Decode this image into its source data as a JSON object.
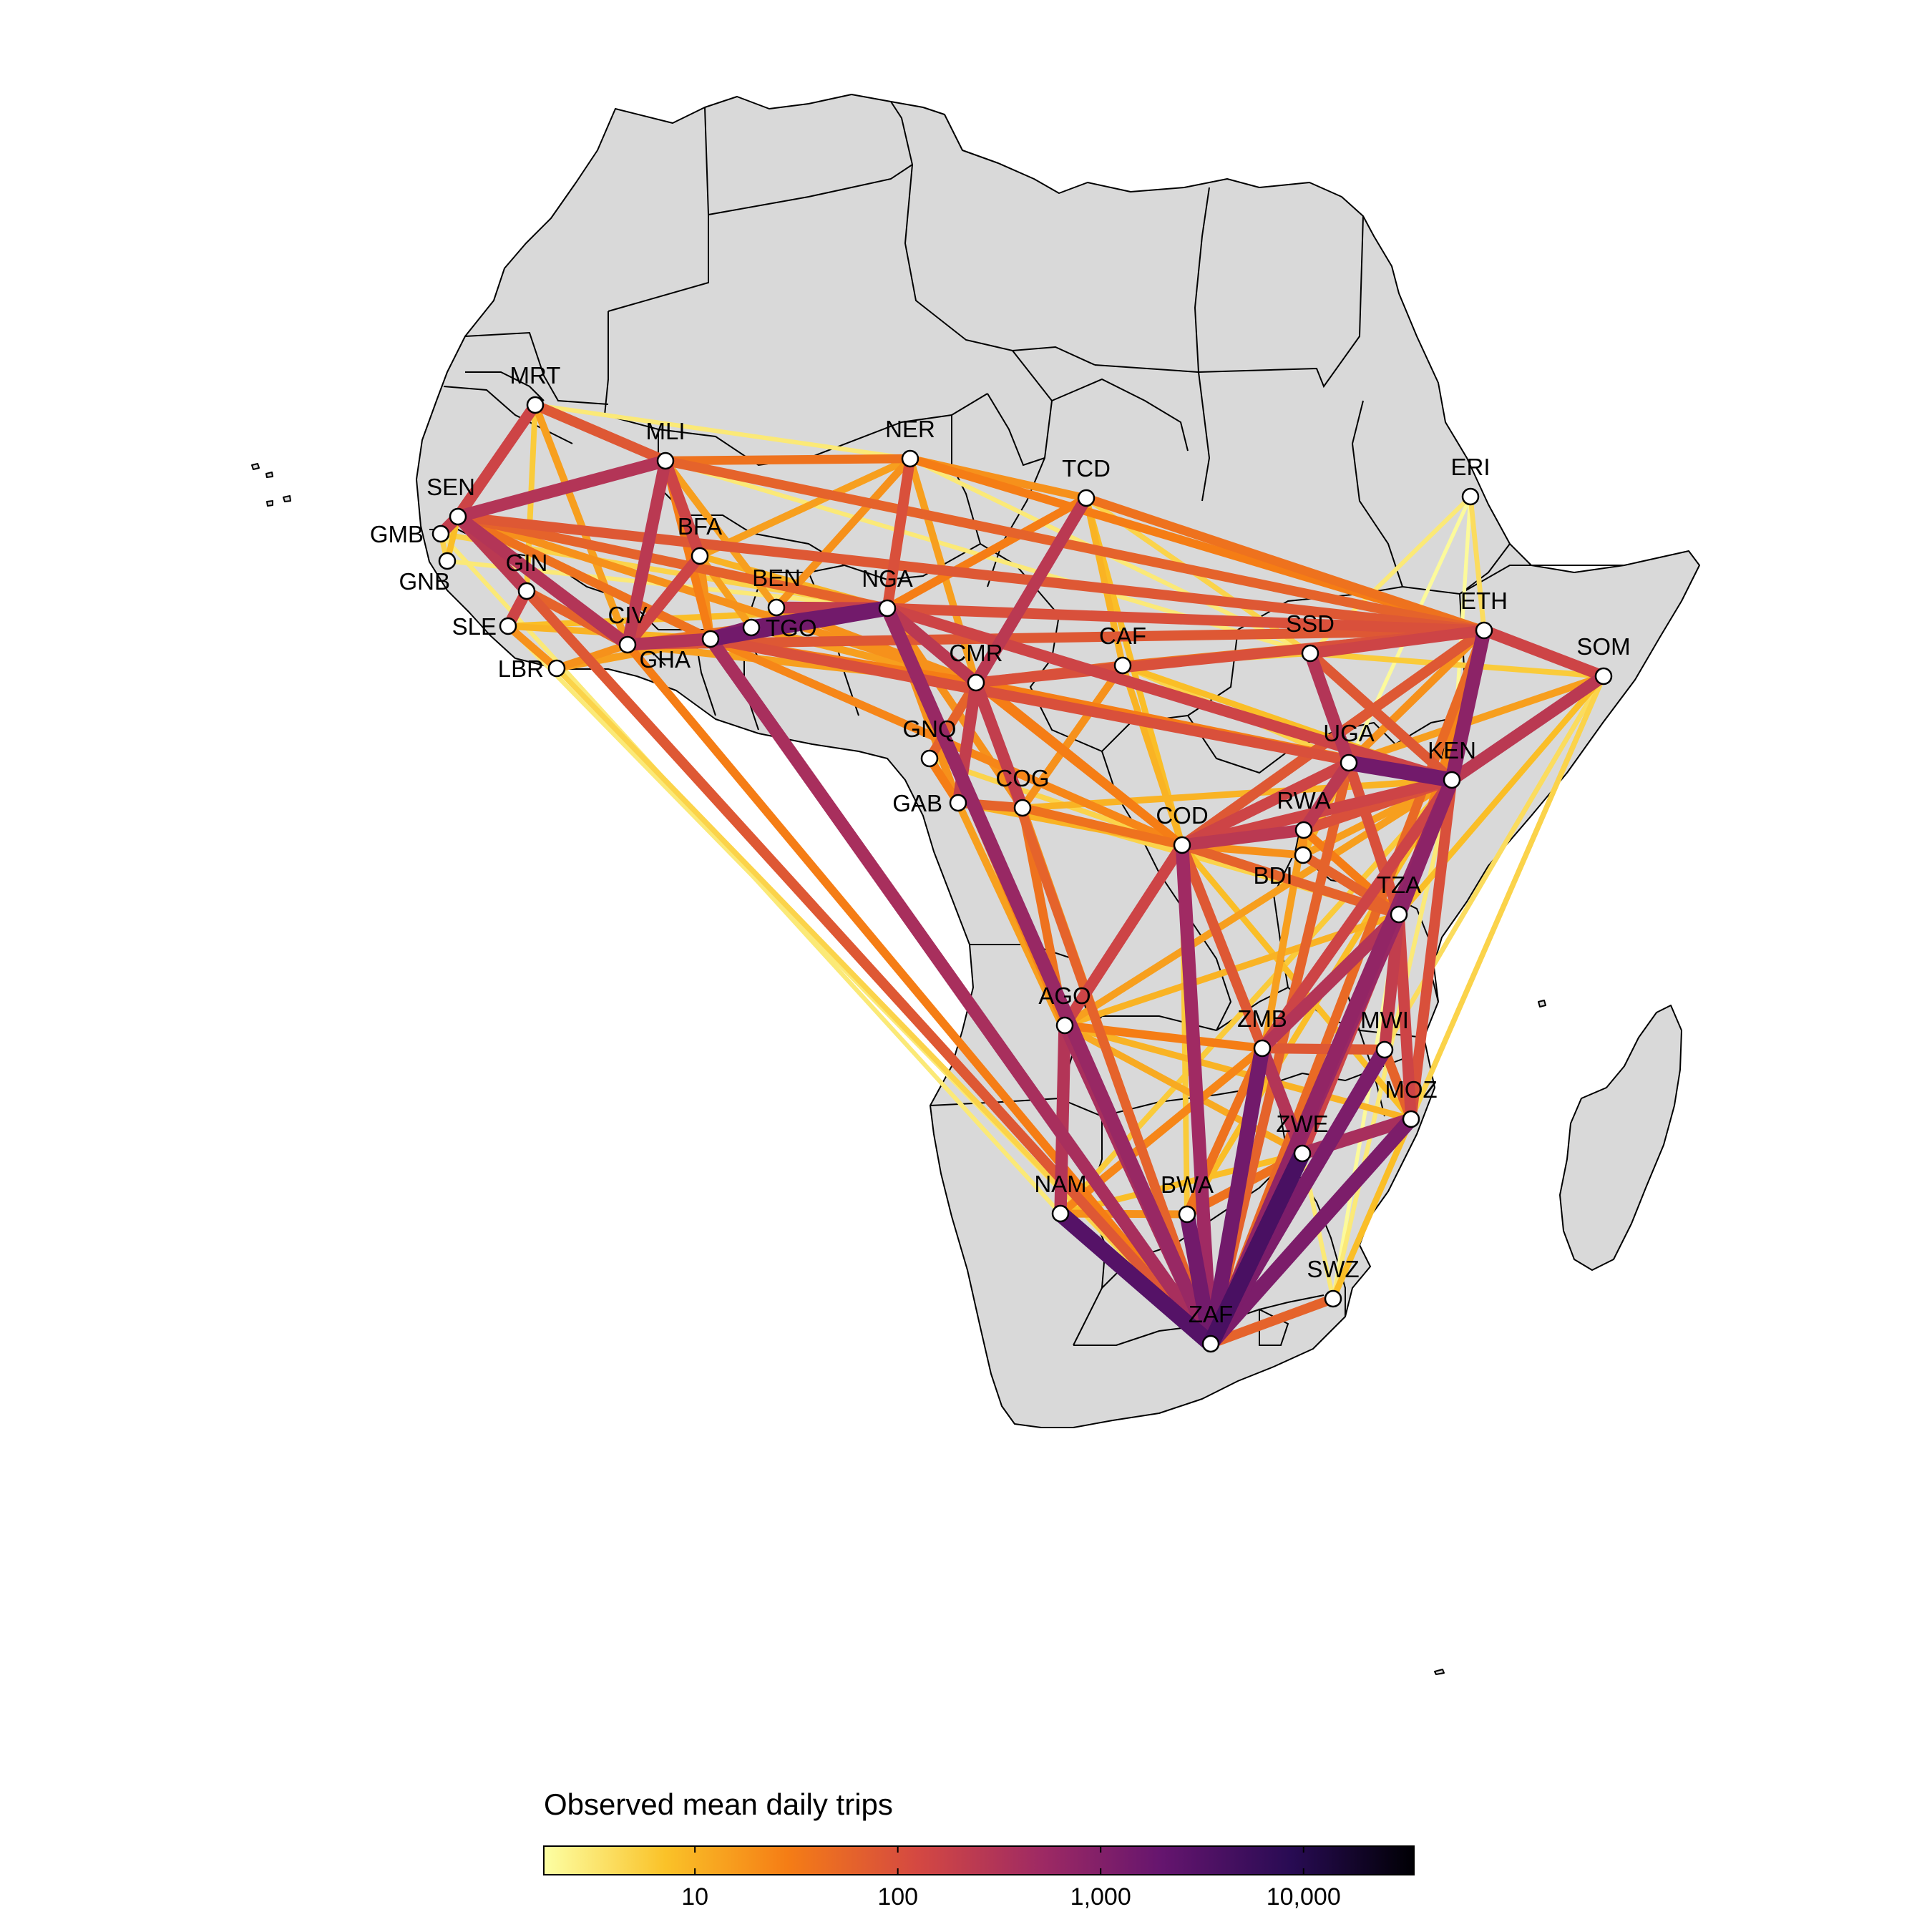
{
  "legend": {
    "title": "Observed mean daily trips",
    "scale": "log",
    "range": [
      1.8,
      35000
    ],
    "ticks": [
      {
        "value": 10,
        "label": "10"
      },
      {
        "value": 100,
        "label": "100"
      },
      {
        "value": 1000,
        "label": "1,000"
      },
      {
        "value": 10000,
        "label": "10,000"
      }
    ],
    "gradient": [
      "#fcffa4",
      "#fac228",
      "#f57d15",
      "#d44842",
      "#9f2a63",
      "#65156e",
      "#280b53",
      "#000004"
    ]
  },
  "map_style": {
    "land": "#d9d9d9",
    "border": "#000000",
    "node_fill": "#ffffff"
  },
  "countries": [
    {
      "code": "MRT"
    },
    {
      "code": "MLI"
    },
    {
      "code": "NER"
    },
    {
      "code": "TCD"
    },
    {
      "code": "ERI"
    },
    {
      "code": "SEN"
    },
    {
      "code": "GMB"
    },
    {
      "code": "GNB"
    },
    {
      "code": "GIN"
    },
    {
      "code": "SLE"
    },
    {
      "code": "LBR"
    },
    {
      "code": "CIV"
    },
    {
      "code": "BFA"
    },
    {
      "code": "GHA"
    },
    {
      "code": "TGO"
    },
    {
      "code": "BEN"
    },
    {
      "code": "NGA"
    },
    {
      "code": "CMR"
    },
    {
      "code": "CAF"
    },
    {
      "code": "SSD"
    },
    {
      "code": "ETH"
    },
    {
      "code": "SOM"
    },
    {
      "code": "GNQ"
    },
    {
      "code": "GAB"
    },
    {
      "code": "COG"
    },
    {
      "code": "COD"
    },
    {
      "code": "UGA"
    },
    {
      "code": "KEN"
    },
    {
      "code": "RWA"
    },
    {
      "code": "BDI"
    },
    {
      "code": "TZA"
    },
    {
      "code": "AGO"
    },
    {
      "code": "ZMB"
    },
    {
      "code": "MWI"
    },
    {
      "code": "MOZ"
    },
    {
      "code": "ZWE"
    },
    {
      "code": "NAM"
    },
    {
      "code": "BWA"
    },
    {
      "code": "SWZ"
    },
    {
      "code": "ZAF"
    }
  ],
  "flows": [
    [
      "NAM",
      "ZAF",
      3000
    ],
    [
      "ZWE",
      "ZAF",
      4000
    ],
    [
      "BWA",
      "ZAF",
      1500
    ],
    [
      "MOZ",
      "ZAF",
      1200
    ],
    [
      "ZMB",
      "ZAF",
      1500
    ],
    [
      "MWI",
      "ZAF",
      1200
    ],
    [
      "NGA",
      "GHA",
      1500
    ],
    [
      "GHA",
      "TGO",
      1000
    ],
    [
      "TGO",
      "NGA",
      1500
    ],
    [
      "KEN",
      "UGA",
      1500
    ],
    [
      "KEN",
      "TZA",
      800
    ],
    [
      "ETH",
      "KEN",
      800
    ],
    [
      "NGA",
      "ZAF",
      600
    ],
    [
      "COD",
      "ZAF",
      500
    ],
    [
      "AGO",
      "ZAF",
      400
    ],
    [
      "GHA",
      "ZAF",
      400
    ],
    [
      "KEN",
      "ZAF",
      700
    ],
    [
      "TZA",
      "ZAF",
      600
    ],
    [
      "ZWE",
      "MOZ",
      400
    ],
    [
      "ZMB",
      "ZWE",
      300
    ],
    [
      "SEN",
      "CIV",
      300
    ],
    [
      "SEN",
      "MLI",
      300
    ],
    [
      "SEN",
      "GIN",
      250
    ],
    [
      "CIV",
      "MLI",
      250
    ],
    [
      "CIV",
      "GHA",
      300
    ],
    [
      "NGA",
      "CMR",
      250
    ],
    [
      "CMR",
      "TCD",
      250
    ],
    [
      "CMR",
      "GAB",
      200
    ],
    [
      "CMR",
      "COG",
      200
    ],
    [
      "UGA",
      "SSD",
      300
    ],
    [
      "UGA",
      "RWA",
      250
    ],
    [
      "RWA",
      "COD",
      250
    ],
    [
      "SOM",
      "KEN",
      250
    ],
    [
      "SOM",
      "ETH",
      150
    ],
    [
      "ETH",
      "SSD",
      150
    ],
    [
      "MWI",
      "TZA",
      200
    ],
    [
      "TZA",
      "ZMB",
      300
    ],
    [
      "AGO",
      "NAM",
      300
    ],
    [
      "AGO",
      "COD",
      150
    ],
    [
      "MRT",
      "SEN",
      150
    ],
    [
      "SEN",
      "GMB",
      200
    ],
    [
      "GIN",
      "SLE",
      150
    ],
    [
      "CIV",
      "BFA",
      150
    ],
    [
      "BFA",
      "MLI",
      150
    ],
    [
      "NGA",
      "NER",
      100
    ],
    [
      "NGA",
      "BEN",
      200
    ],
    [
      "NGA",
      "KEN",
      150
    ],
    [
      "NGA",
      "ETH",
      100
    ],
    [
      "GHA",
      "KEN",
      100
    ],
    [
      "CMR",
      "ETH",
      100
    ],
    [
      "SEN",
      "ETH",
      80
    ],
    [
      "CIV",
      "ETH",
      80
    ],
    [
      "MLI",
      "ETH",
      60
    ],
    [
      "TCD",
      "ETH",
      40
    ],
    [
      "NER",
      "ETH",
      30
    ],
    [
      "CAF",
      "ETH",
      40
    ],
    [
      "COD",
      "ETH",
      80
    ],
    [
      "COD",
      "KEN",
      150
    ],
    [
      "COD",
      "UGA",
      150
    ],
    [
      "MOZ",
      "TZA",
      150
    ],
    [
      "MOZ",
      "KEN",
      100
    ],
    [
      "ZMB",
      "KEN",
      150
    ],
    [
      "ZWE",
      "KEN",
      150
    ],
    [
      "SWZ",
      "ZAF",
      60
    ],
    [
      "SWZ",
      "MOZ",
      8
    ],
    [
      "SWZ",
      "ZWE",
      3
    ],
    [
      "ERI",
      "ETH",
      4
    ],
    [
      "ERI",
      "SSD",
      3
    ],
    [
      "ERI",
      "KEN",
      2
    ],
    [
      "SOM",
      "TZA",
      8
    ],
    [
      "SOM",
      "MOZ",
      5
    ],
    [
      "MRT",
      "MLI",
      80
    ],
    [
      "MRT",
      "NER",
      3
    ],
    [
      "MRT",
      "CIV",
      15
    ],
    [
      "MLI",
      "NER",
      40
    ],
    [
      "NER",
      "TCD",
      20
    ],
    [
      "NER",
      "CMR",
      15
    ],
    [
      "NER",
      "BFA",
      15
    ],
    [
      "TCD",
      "NGA",
      30
    ],
    [
      "TCD",
      "CAF",
      10
    ],
    [
      "CMR",
      "CAF",
      60
    ],
    [
      "CAF",
      "COG",
      20
    ],
    [
      "GAB",
      "COG",
      60
    ],
    [
      "GNQ",
      "CMR",
      60
    ],
    [
      "GNQ",
      "GAB",
      30
    ],
    [
      "COG",
      "COD",
      40
    ],
    [
      "COG",
      "AGO",
      40
    ],
    [
      "COD",
      "ZMB",
      80
    ],
    [
      "COD",
      "TZA",
      60
    ],
    [
      "BDI",
      "TZA",
      60
    ],
    [
      "BDI",
      "RWA",
      20
    ],
    [
      "RWA",
      "KEN",
      100
    ],
    [
      "SSD",
      "KEN",
      80
    ],
    [
      "UGA",
      "TZA",
      100
    ],
    [
      "ZMB",
      "MWI",
      80
    ],
    [
      "ZMB",
      "BWA",
      40
    ],
    [
      "NAM",
      "BWA",
      20
    ],
    [
      "AGO",
      "ZMB",
      30
    ],
    [
      "SEN",
      "NGA",
      60
    ],
    [
      "SEN",
      "GHA",
      40
    ],
    [
      "CIV",
      "NGA",
      40
    ],
    [
      "GIN",
      "CIV",
      60
    ],
    [
      "LBR",
      "CIV",
      20
    ],
    [
      "SLE",
      "LBR",
      20
    ],
    [
      "GIN",
      "ZAF",
      80
    ],
    [
      "CIV",
      "ZAF",
      30
    ],
    [
      "SEN",
      "ZAF",
      20
    ],
    [
      "LBR",
      "ZAF",
      5
    ],
    [
      "SLE",
      "ZAF",
      3
    ],
    [
      "GMB",
      "NAM",
      3
    ],
    [
      "BEN",
      "CMR",
      20
    ],
    [
      "TGO",
      "CMR",
      15
    ],
    [
      "GHA",
      "CMR",
      30
    ],
    [
      "GHA",
      "COD",
      25
    ],
    [
      "NGA",
      "COD",
      30
    ],
    [
      "NGA",
      "GAB",
      20
    ],
    [
      "NGA",
      "COG",
      20
    ],
    [
      "NGA",
      "AGO",
      25
    ],
    [
      "CMR",
      "COD",
      30
    ],
    [
      "CMR",
      "KEN",
      30
    ],
    [
      "CMR",
      "ZAF",
      60
    ],
    [
      "GAB",
      "ZAF",
      15
    ],
    [
      "COG",
      "ZAF",
      20
    ],
    [
      "CAF",
      "COD",
      10
    ],
    [
      "SSD",
      "ETH",
      50
    ],
    [
      "SSD",
      "CAF",
      6
    ],
    [
      "ETH",
      "TZA",
      25
    ],
    [
      "ETH",
      "ZAF",
      50
    ],
    [
      "MLI",
      "GHA",
      30
    ],
    [
      "MLI",
      "BEN",
      15
    ],
    [
      "BFA",
      "GHA",
      20
    ],
    [
      "BFA",
      "TGO",
      15
    ],
    [
      "BFA",
      "NGA",
      10
    ],
    [
      "NER",
      "BEN",
      20
    ],
    [
      "SEN",
      "CMR",
      20
    ],
    [
      "CIV",
      "CMR",
      15
    ],
    [
      "AGO",
      "TZA",
      10
    ],
    [
      "AGO",
      "KEN",
      15
    ],
    [
      "AGO",
      "MOZ",
      10
    ],
    [
      "AGO",
      "ZWE",
      12
    ],
    [
      "NAM",
      "ZMB",
      25
    ],
    [
      "NAM",
      "ZWE",
      8
    ],
    [
      "BWA",
      "ZWE",
      40
    ],
    [
      "MWI",
      "MOZ",
      60
    ],
    [
      "ZWE",
      "TZA",
      20
    ],
    [
      "BDI",
      "KEN",
      15
    ],
    [
      "BDI",
      "UGA",
      10
    ],
    [
      "BDI",
      "COD",
      20
    ],
    [
      "RWA",
      "TZA",
      30
    ],
    [
      "UGA",
      "ETH",
      20
    ],
    [
      "UGA",
      "ZAF",
      60
    ],
    [
      "RWA",
      "ZAF",
      15
    ],
    [
      "MRT",
      "GIN",
      6
    ],
    [
      "GMB",
      "GNB",
      5
    ],
    [
      "GNB",
      "SEN",
      8
    ],
    [
      "TCD",
      "SSD",
      5
    ],
    [
      "TCD",
      "COD",
      8
    ],
    [
      "NER",
      "SSD",
      3
    ],
    [
      "MLI",
      "SSD",
      3
    ],
    [
      "CAF",
      "KEN",
      8
    ],
    [
      "CAF",
      "UGA",
      5
    ],
    [
      "GNQ",
      "COD",
      5
    ],
    [
      "GAB",
      "COD",
      10
    ],
    [
      "GAB",
      "AGO",
      8
    ],
    [
      "COG",
      "KEN",
      10
    ],
    [
      "TZA",
      "COG",
      5
    ],
    [
      "MOZ",
      "COD",
      8
    ],
    [
      "BWA",
      "COD",
      6
    ],
    [
      "BWA",
      "KEN",
      8
    ],
    [
      "NAM",
      "KEN",
      6
    ],
    [
      "SWZ",
      "KEN",
      3
    ],
    [
      "SWZ",
      "TZA",
      2
    ],
    [
      "LBR",
      "GHA",
      15
    ],
    [
      "LBR",
      "NGA",
      10
    ],
    [
      "SLE",
      "GHA",
      10
    ],
    [
      "SLE",
      "NGA",
      8
    ],
    [
      "GNB",
      "NGA",
      3
    ],
    [
      "GMB",
      "NGA",
      5
    ],
    [
      "ERI",
      "UGA",
      2
    ],
    [
      "SOM",
      "UGA",
      15
    ],
    [
      "SOM",
      "SSD",
      6
    ],
    [
      "SOM",
      "ZAF",
      4
    ]
  ]
}
